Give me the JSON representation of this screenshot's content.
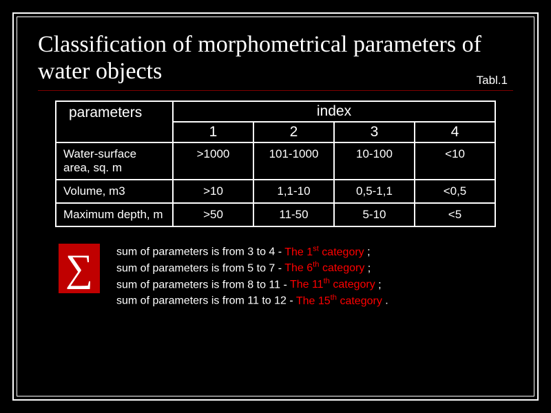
{
  "title": "Classification of morphometrical parameters of water objects",
  "table_label": "Tabl.1",
  "colors": {
    "background": "#000000",
    "text": "#ffffff",
    "divider": "#800000",
    "sigma_bg": "#c00000",
    "highlight": "#ff0000"
  },
  "table": {
    "header_param": "parameters",
    "header_index": "index",
    "index_numbers": [
      "1",
      "2",
      "3",
      "4"
    ],
    "rows": [
      {
        "label": "Water-surface area, sq. m",
        "cells": [
          ">1000",
          "101-1000",
          "10-100",
          "<10"
        ]
      },
      {
        "label": "Volume, m3",
        "cells": [
          ">10",
          "1,1-10",
          "0,5-1,1",
          "<0,5"
        ]
      },
      {
        "label": "Maximum depth, m",
        "cells": [
          ">50",
          "11-50",
          "5-10",
          "<5"
        ]
      }
    ]
  },
  "sigma": "∑",
  "legend": [
    {
      "prefix": "sum of parameters is from 3 to 4 - ",
      "cat_pre": "The 1",
      "sup": "st",
      "cat_post": "  category",
      "suffix": " ;"
    },
    {
      "prefix": "sum of parameters is from 5 to 7 - ",
      "cat_pre": "The 6",
      "sup": "th",
      "cat_post": " category",
      "suffix": " ;"
    },
    {
      "prefix": "sum of parameters is from 8 to 11 - ",
      "cat_pre": "The 11",
      "sup": "th",
      "cat_post": " category",
      "suffix": " ;"
    },
    {
      "prefix": "sum of parameters is from 11 to 12 - ",
      "cat_pre": "The 15",
      "sup": "th",
      "cat_post": " category",
      "suffix": " ."
    }
  ]
}
